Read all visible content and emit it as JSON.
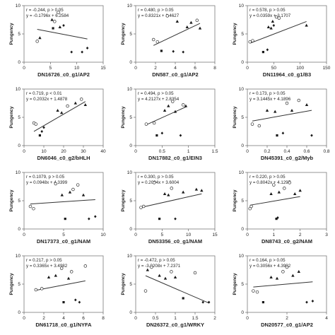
{
  "chart_data": [
    {
      "type": "scatter",
      "xlabel": "DN16726_c0_g1/AP2",
      "ylabel": "Pungency",
      "stat_r": "r = -0.244, p > 0.05",
      "equation": "y = -0.1796x + 6.2584",
      "slope": -0.1796,
      "intercept": 6.2584,
      "xlim": [
        0,
        15
      ],
      "ylim": [
        0,
        10
      ],
      "xticks": [
        "0",
        "5",
        "10",
        "15"
      ],
      "yticks": [
        "0",
        "5",
        "10"
      ],
      "points": [
        {
          "x": 2.5,
          "y": 3.7,
          "m": "circle"
        },
        {
          "x": 3.0,
          "y": 4.3,
          "m": "triangle"
        },
        {
          "x": 5.3,
          "y": 7.5,
          "m": "triangle"
        },
        {
          "x": 5.8,
          "y": 7.2,
          "m": "circle"
        },
        {
          "x": 5.5,
          "y": 6.0,
          "m": "square"
        },
        {
          "x": 6.8,
          "y": 6.2,
          "m": "triangle"
        },
        {
          "x": 7.5,
          "y": 6.5,
          "m": "diamond"
        },
        {
          "x": 9.0,
          "y": 1.8,
          "m": "diamond"
        },
        {
          "x": 11.0,
          "y": 1.8,
          "m": "diamond"
        },
        {
          "x": 12.0,
          "y": 2.5,
          "m": "diamond"
        },
        {
          "x": 6.5,
          "y": 8.8,
          "m": "circle"
        }
      ]
    },
    {
      "type": "scatter",
      "xlabel": "DN587_c0_g1/AP2",
      "ylabel": "Pungency",
      "stat_r": "r = 0.480, p > 0.05",
      "equation": "y = 0.8321x + 1.4627",
      "slope": 0.8321,
      "intercept": 1.4627,
      "xlim": [
        0,
        8
      ],
      "ylim": [
        0,
        10
      ],
      "xticks": [
        "0",
        "2",
        "4",
        "6",
        "8"
      ],
      "yticks": [
        "0",
        "5",
        "10"
      ],
      "points": [
        {
          "x": 1.8,
          "y": 4.0,
          "m": "circle"
        },
        {
          "x": 2.2,
          "y": 3.6,
          "m": "circle"
        },
        {
          "x": 2.6,
          "y": 2.0,
          "m": "square"
        },
        {
          "x": 3.8,
          "y": 1.9,
          "m": "diamond"
        },
        {
          "x": 4.2,
          "y": 7.2,
          "m": "triangle"
        },
        {
          "x": 4.8,
          "y": 1.8,
          "m": "diamond"
        },
        {
          "x": 5.2,
          "y": 6.2,
          "m": "triangle"
        },
        {
          "x": 5.6,
          "y": 7.0,
          "m": "triangle"
        },
        {
          "x": 6.2,
          "y": 7.4,
          "m": "circle"
        },
        {
          "x": 6.5,
          "y": 6.0,
          "m": "triangle"
        },
        {
          "x": 3.2,
          "y": 8.2,
          "m": "circle"
        }
      ]
    },
    {
      "type": "scatter",
      "xlabel": "DN11964_c0_g1/B3",
      "ylabel": "Pungency",
      "stat_r": "r = 0.578, p > 0.05",
      "equation": "y = 0.0359x + 3.1707",
      "slope": 0.0359,
      "intercept": 3.1707,
      "xlim": [
        0,
        150
      ],
      "ylim": [
        0,
        10
      ],
      "xticks": [
        "0",
        "50",
        "100",
        "150"
      ],
      "yticks": [
        "0",
        "5",
        "10"
      ],
      "points": [
        {
          "x": 5,
          "y": 3.6,
          "m": "circle"
        },
        {
          "x": 10,
          "y": 3.8,
          "m": "circle"
        },
        {
          "x": 30,
          "y": 1.8,
          "m": "square"
        },
        {
          "x": 38,
          "y": 2.2,
          "m": "diamond"
        },
        {
          "x": 45,
          "y": 6.0,
          "m": "triangle"
        },
        {
          "x": 48,
          "y": 7.2,
          "m": "triangle"
        },
        {
          "x": 50,
          "y": 6.5,
          "m": "diamond"
        },
        {
          "x": 55,
          "y": 8.0,
          "m": "circle"
        },
        {
          "x": 60,
          "y": 7.8,
          "m": "circle"
        },
        {
          "x": 40,
          "y": 6.2,
          "m": "triangle"
        },
        {
          "x": 112,
          "y": 6.5,
          "m": "triangle"
        }
      ]
    },
    {
      "type": "scatter",
      "xlabel": "DN6046_c0_g2/bHLH",
      "ylabel": "Pungency",
      "stat_r": "r = 0.719, p < 0.01",
      "equation": "y = 0.2032x + 1.4878",
      "slope": 0.2032,
      "intercept": 1.4878,
      "xlim": [
        0,
        40
      ],
      "ylim": [
        0,
        10
      ],
      "xticks": [
        "0",
        "10",
        "20",
        "30",
        "40"
      ],
      "yticks": [
        "0",
        "5",
        "10"
      ],
      "points": [
        {
          "x": 5,
          "y": 4.0,
          "m": "circle"
        },
        {
          "x": 6,
          "y": 3.8,
          "m": "circle"
        },
        {
          "x": 8,
          "y": 1.8,
          "m": "square"
        },
        {
          "x": 9,
          "y": 2.5,
          "m": "diamond"
        },
        {
          "x": 10,
          "y": 3.2,
          "m": "diamond"
        },
        {
          "x": 17,
          "y": 6.2,
          "m": "triangle"
        },
        {
          "x": 19,
          "y": 5.8,
          "m": "triangle"
        },
        {
          "x": 22,
          "y": 7.0,
          "m": "circle"
        },
        {
          "x": 26,
          "y": 7.5,
          "m": "triangle"
        },
        {
          "x": 29,
          "y": 8.2,
          "m": "circle"
        },
        {
          "x": 31,
          "y": 7.2,
          "m": "triangle"
        }
      ]
    },
    {
      "type": "scatter",
      "xlabel": "DN17882_c0_g1/EIN3",
      "ylabel": "Pungency",
      "stat_r": "r = 0.494, p > 0.05",
      "equation": "y = 4.2127x + 2.8354",
      "slope": 4.2127,
      "intercept": 2.8354,
      "xlim": [
        0,
        1.5
      ],
      "ylim": [
        0,
        10
      ],
      "xticks": [
        "0",
        "0.5",
        "1",
        "1.5"
      ],
      "yticks": [
        "0",
        "5",
        "10"
      ],
      "points": [
        {
          "x": 0.2,
          "y": 3.8,
          "m": "circle"
        },
        {
          "x": 0.35,
          "y": 4.0,
          "m": "circle"
        },
        {
          "x": 0.4,
          "y": 1.8,
          "m": "square"
        },
        {
          "x": 0.5,
          "y": 2.2,
          "m": "diamond"
        },
        {
          "x": 0.55,
          "y": 6.2,
          "m": "triangle"
        },
        {
          "x": 0.62,
          "y": 7.0,
          "m": "triangle"
        },
        {
          "x": 0.7,
          "y": 7.8,
          "m": "circle"
        },
        {
          "x": 0.75,
          "y": 6.0,
          "m": "triangle"
        },
        {
          "x": 0.85,
          "y": 1.8,
          "m": "diamond"
        },
        {
          "x": 0.9,
          "y": 7.2,
          "m": "circle"
        },
        {
          "x": 0.95,
          "y": 7.0,
          "m": "triangle"
        }
      ]
    },
    {
      "type": "scatter",
      "xlabel": "DN45391_c0_g2/Myb",
      "ylabel": "Pungency",
      "stat_r": "r = 0.173, p > 0.05",
      "equation": "y = 3.1445x + 4.1896",
      "slope": 3.1445,
      "intercept": 4.1896,
      "xlim": [
        0,
        0.8
      ],
      "ylim": [
        0,
        10
      ],
      "xticks": [
        "0",
        "0.2",
        "0.4",
        "0.6",
        "0.8"
      ],
      "yticks": [
        "0",
        "5",
        "10"
      ],
      "points": [
        {
          "x": 0.05,
          "y": 3.8,
          "m": "circle"
        },
        {
          "x": 0.12,
          "y": 3.5,
          "m": "circle"
        },
        {
          "x": 0.2,
          "y": 6.2,
          "m": "triangle"
        },
        {
          "x": 0.28,
          "y": 6.0,
          "m": "triangle"
        },
        {
          "x": 0.3,
          "y": 1.8,
          "m": "square"
        },
        {
          "x": 0.36,
          "y": 2.2,
          "m": "diamond"
        },
        {
          "x": 0.4,
          "y": 7.5,
          "m": "circle"
        },
        {
          "x": 0.45,
          "y": 6.2,
          "m": "triangle"
        },
        {
          "x": 0.52,
          "y": 8.0,
          "m": "circle"
        },
        {
          "x": 0.6,
          "y": 7.2,
          "m": "triangle"
        },
        {
          "x": 0.65,
          "y": 1.8,
          "m": "diamond"
        }
      ]
    },
    {
      "type": "scatter",
      "xlabel": "DN17373_c0_g1/NAM",
      "ylabel": "Pungency",
      "stat_r": "r = 0.1079, p > 0.05",
      "equation": "y = 0.0948x + 4.3399",
      "slope": 0.0948,
      "intercept": 4.3399,
      "xlim": [
        0,
        10
      ],
      "ylim": [
        0,
        10
      ],
      "xticks": [
        "0",
        "5",
        "10"
      ],
      "yticks": [
        "0",
        "5",
        "10"
      ],
      "points": [
        {
          "x": 0.8,
          "y": 4.0,
          "m": "circle"
        },
        {
          "x": 1.2,
          "y": 3.6,
          "m": "circle"
        },
        {
          "x": 4.0,
          "y": 8.0,
          "m": "circle"
        },
        {
          "x": 4.8,
          "y": 6.0,
          "m": "triangle"
        },
        {
          "x": 5.2,
          "y": 1.8,
          "m": "square"
        },
        {
          "x": 5.8,
          "y": 6.5,
          "m": "triangle"
        },
        {
          "x": 6.2,
          "y": 7.0,
          "m": "circle"
        },
        {
          "x": 6.8,
          "y": 7.8,
          "m": "circle"
        },
        {
          "x": 7.5,
          "y": 6.0,
          "m": "triangle"
        },
        {
          "x": 8.2,
          "y": 1.8,
          "m": "diamond"
        },
        {
          "x": 9.0,
          "y": 2.2,
          "m": "diamond"
        }
      ]
    },
    {
      "type": "scatter",
      "xlabel": "DN53356_c0_g1/NAM",
      "ylabel": "Pungency",
      "stat_r": "r = 0.300, p > 0.05",
      "equation": "y = 0.2094x + 3.6004",
      "slope": 0.2094,
      "intercept": 3.6004,
      "xlim": [
        0,
        15
      ],
      "ylim": [
        0,
        10
      ],
      "xticks": [
        "0",
        "5",
        "10",
        "15"
      ],
      "yticks": [
        "0",
        "5",
        "10"
      ],
      "points": [
        {
          "x": 1.0,
          "y": 3.8,
          "m": "circle"
        },
        {
          "x": 1.5,
          "y": 4.0,
          "m": "circle"
        },
        {
          "x": 3.5,
          "y": 8.2,
          "m": "circle"
        },
        {
          "x": 4.5,
          "y": 1.8,
          "m": "square"
        },
        {
          "x": 5.5,
          "y": 6.2,
          "m": "triangle"
        },
        {
          "x": 6.2,
          "y": 6.0,
          "m": "triangle"
        },
        {
          "x": 6.8,
          "y": 7.2,
          "m": "circle"
        },
        {
          "x": 7.5,
          "y": 1.8,
          "m": "diamond"
        },
        {
          "x": 9.0,
          "y": 6.5,
          "m": "triangle"
        },
        {
          "x": 11.5,
          "y": 7.0,
          "m": "triangle"
        },
        {
          "x": 12.5,
          "y": 6.8,
          "m": "triangle"
        }
      ]
    },
    {
      "type": "scatter",
      "xlabel": "DN8743_c0_g2/NAM",
      "ylabel": "Pungency",
      "stat_r": "r = 0.220, p > 0.05",
      "equation": "y = 0.8042x + 4.1297",
      "slope": 0.8042,
      "intercept": 4.1297,
      "xlim": [
        0,
        3
      ],
      "ylim": [
        0,
        10
      ],
      "xticks": [
        "0",
        "1",
        "2",
        "3"
      ],
      "yticks": [
        "0",
        "5",
        "10"
      ],
      "points": [
        {
          "x": 0.1,
          "y": 3.6,
          "m": "circle"
        },
        {
          "x": 0.15,
          "y": 4.0,
          "m": "circle"
        },
        {
          "x": 0.9,
          "y": 6.2,
          "m": "triangle"
        },
        {
          "x": 1.0,
          "y": 7.8,
          "m": "circle"
        },
        {
          "x": 1.1,
          "y": 1.8,
          "m": "square"
        },
        {
          "x": 1.2,
          "y": 6.5,
          "m": "triangle"
        },
        {
          "x": 1.4,
          "y": 7.2,
          "m": "circle"
        },
        {
          "x": 1.6,
          "y": 8.2,
          "m": "circle"
        },
        {
          "x": 1.8,
          "y": 6.2,
          "m": "triangle"
        },
        {
          "x": 2.0,
          "y": 6.8,
          "m": "triangle"
        },
        {
          "x": 1.15,
          "y": 2.0,
          "m": "diamond"
        }
      ]
    },
    {
      "type": "scatter",
      "xlabel": "DN61718_c0_g1/NYFA",
      "ylabel": "Pungency",
      "stat_r": "r = 0.217, p > 0.05",
      "equation": "y = 0.3365x + 3.4982",
      "slope": 0.3365,
      "intercept": 3.4982,
      "xlim": [
        0,
        8
      ],
      "ylim": [
        0,
        10
      ],
      "xticks": [
        "0",
        "2",
        "4",
        "6",
        "8"
      ],
      "yticks": [
        "0",
        "5",
        "10"
      ],
      "points": [
        {
          "x": 1.2,
          "y": 4.0,
          "m": "circle"
        },
        {
          "x": 1.8,
          "y": 4.2,
          "m": "circle"
        },
        {
          "x": 2.5,
          "y": 6.2,
          "m": "triangle"
        },
        {
          "x": 3.2,
          "y": 6.5,
          "m": "triangle"
        },
        {
          "x": 3.8,
          "y": 7.8,
          "m": "circle"
        },
        {
          "x": 4.0,
          "y": 1.8,
          "m": "square"
        },
        {
          "x": 4.5,
          "y": 6.0,
          "m": "triangle"
        },
        {
          "x": 4.8,
          "y": 7.2,
          "m": "circle"
        },
        {
          "x": 5.2,
          "y": 2.2,
          "m": "diamond"
        },
        {
          "x": 5.6,
          "y": 1.8,
          "m": "diamond"
        },
        {
          "x": 6.2,
          "y": 8.2,
          "m": "circle"
        }
      ]
    },
    {
      "type": "scatter",
      "xlabel": "DN26372_c0_g1/WRKY",
      "ylabel": "Pungency",
      "stat_r": "r = -0.472, p > 0.05",
      "equation": "y = -3.0208x + 7.2371",
      "slope": -3.0208,
      "intercept": 7.2371,
      "xlim": [
        0,
        2
      ],
      "ylim": [
        0,
        10
      ],
      "xticks": [
        "0",
        "0.5",
        "1",
        "1.5",
        "2"
      ],
      "yticks": [
        "0",
        "5",
        "10"
      ],
      "points": [
        {
          "x": 0.25,
          "y": 3.8,
          "m": "circle"
        },
        {
          "x": 0.3,
          "y": 7.5,
          "m": "triangle"
        },
        {
          "x": 0.4,
          "y": 8.0,
          "m": "circle"
        },
        {
          "x": 0.6,
          "y": 6.5,
          "m": "triangle"
        },
        {
          "x": 0.75,
          "y": 6.0,
          "m": "triangle"
        },
        {
          "x": 0.9,
          "y": 7.2,
          "m": "circle"
        },
        {
          "x": 1.0,
          "y": 6.2,
          "m": "triangle"
        },
        {
          "x": 1.2,
          "y": 2.5,
          "m": "square"
        },
        {
          "x": 1.5,
          "y": 7.0,
          "m": "circle"
        },
        {
          "x": 1.7,
          "y": 1.8,
          "m": "diamond"
        },
        {
          "x": 1.85,
          "y": 1.8,
          "m": "diamond"
        }
      ]
    },
    {
      "type": "scatter",
      "xlabel": "DN20577_c0_g1/AP2",
      "ylabel": "Pungency",
      "stat_r": "r = 0.164, p > 0.05",
      "equation": "y = 0.3056x + 4.3992",
      "slope": 0.3056,
      "intercept": 4.3992,
      "xlim": [
        0,
        4
      ],
      "ylim": [
        0,
        10
      ],
      "xticks": [
        "0",
        "2",
        "4"
      ],
      "yticks": [
        "0",
        "5",
        "10"
      ],
      "points": [
        {
          "x": 0.3,
          "y": 3.8,
          "m": "circle"
        },
        {
          "x": 0.5,
          "y": 3.6,
          "m": "circle"
        },
        {
          "x": 0.8,
          "y": 1.8,
          "m": "square"
        },
        {
          "x": 1.2,
          "y": 6.2,
          "m": "triangle"
        },
        {
          "x": 1.5,
          "y": 6.0,
          "m": "triangle"
        },
        {
          "x": 1.8,
          "y": 7.2,
          "m": "circle"
        },
        {
          "x": 2.0,
          "y": 8.0,
          "m": "circle"
        },
        {
          "x": 2.3,
          "y": 6.5,
          "m": "triangle"
        },
        {
          "x": 2.6,
          "y": 7.2,
          "m": "triangle"
        },
        {
          "x": 3.0,
          "y": 1.8,
          "m": "diamond"
        },
        {
          "x": 3.3,
          "y": 2.0,
          "m": "diamond"
        }
      ]
    }
  ]
}
